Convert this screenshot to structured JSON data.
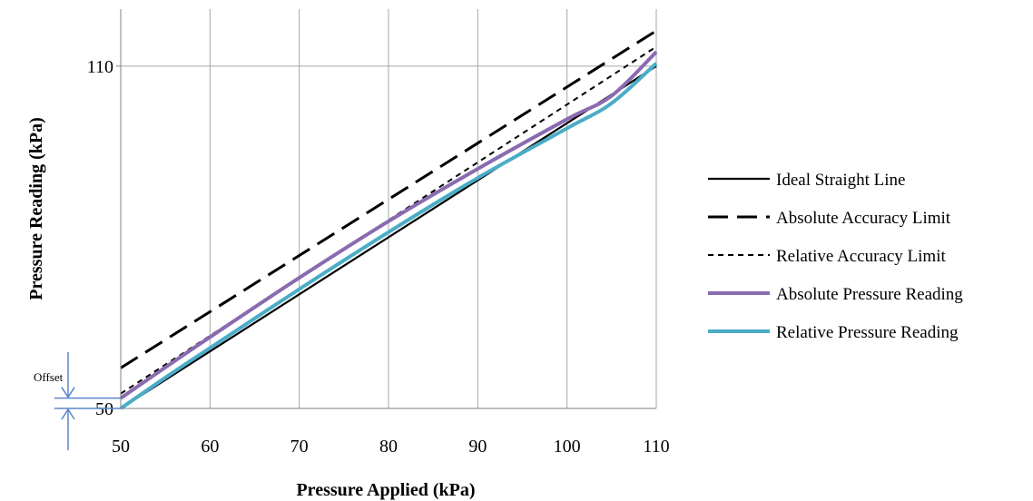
{
  "chart_data": {
    "type": "line",
    "xlabel": "Pressure Applied (kPa)",
    "ylabel": "Pressure Reading (kPa)",
    "xlim": [
      50,
      110
    ],
    "ylim": [
      50,
      120
    ],
    "x_ticks": [
      50,
      60,
      70,
      80,
      90,
      100,
      110
    ],
    "y_ticks": [
      50,
      110
    ],
    "grid": "vertical gridlines at x ticks, horizontal gridline at y=110",
    "legend_position": "right",
    "series": [
      {
        "name": "Ideal Straight Line",
        "style": "solid",
        "color": "#000000",
        "x": [
          50,
          110
        ],
        "y": [
          50,
          110
        ]
      },
      {
        "name": "Absolute Accuracy Limit",
        "style": "long-dash",
        "color": "#000000",
        "x": [
          50,
          110
        ],
        "y": [
          57.1,
          116.2
        ]
      },
      {
        "name": "Relative Accuracy Limit",
        "style": "short-dash",
        "color": "#000000",
        "x": [
          50,
          110
        ],
        "y": [
          52.6,
          113.4
        ]
      },
      {
        "name": "Absolute Pressure Reading",
        "style": "solid-thick",
        "color": "#8A6BB0",
        "x": [
          50,
          55,
          60,
          70,
          80,
          90,
          100,
          105,
          110
        ],
        "y": [
          51.8,
          57.2,
          62.5,
          72.9,
          82.8,
          92.0,
          100.7,
          104.8,
          112.5
        ]
      },
      {
        "name": "Relative Pressure Reading",
        "style": "solid-thick",
        "color": "#4BACC6",
        "x": [
          50,
          55,
          60,
          70,
          80,
          90,
          100,
          105,
          110
        ],
        "y": [
          50,
          55.4,
          60.6,
          70.9,
          80.9,
          90.4,
          99.1,
          103.5,
          110.5
        ]
      }
    ],
    "annotations": [
      {
        "text": "Offset",
        "note": "bracket showing vertical gap between readings at x=50"
      }
    ]
  }
}
